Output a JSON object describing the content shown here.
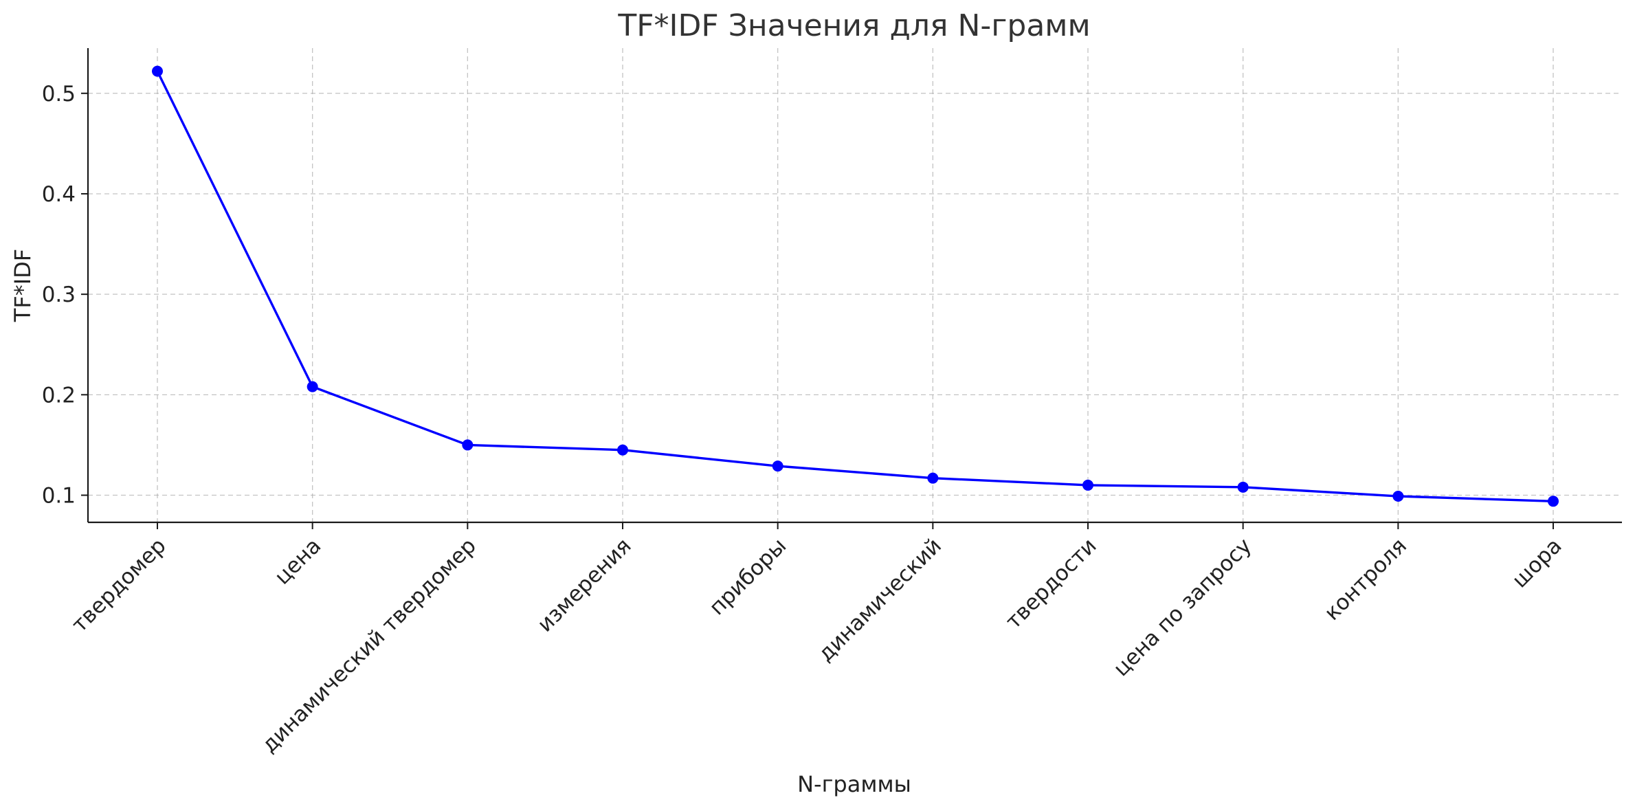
{
  "chart_data": {
    "type": "line",
    "title": "TF*IDF Значения для N-грамм",
    "xlabel": "N-граммы",
    "ylabel": "TF*IDF",
    "categories": [
      "твердомер",
      "цена",
      "динамический твердомер",
      "измерения",
      "приборы",
      "динамический",
      "твердости",
      "цена по запросу",
      "контроля",
      "шора"
    ],
    "series": [
      {
        "values": [
          0.522,
          0.208,
          0.15,
          0.145,
          0.129,
          0.117,
          0.11,
          0.108,
          0.099,
          0.094
        ]
      }
    ],
    "yticks": [
      "0.1",
      "0.2",
      "0.3",
      "0.4",
      "0.5"
    ],
    "ylim": [
      0.073,
      0.545
    ],
    "grid": true,
    "legend": "none",
    "line_color": "#0000ff",
    "marker_color": "#0000ff"
  }
}
